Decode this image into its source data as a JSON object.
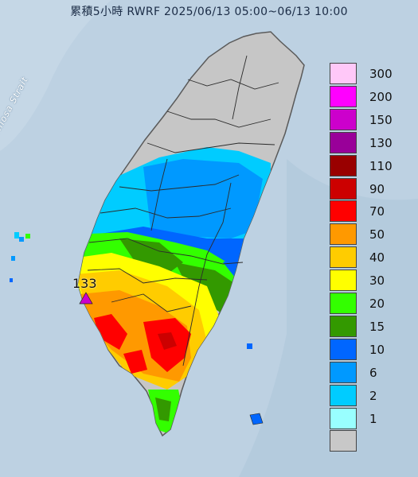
{
  "title": "累積5小時 RWRF 2025/06/13 05:00~06/13 10:00",
  "strait_label": "Formosa Strait",
  "max_value_label": "133",
  "legend": [
    {
      "label": "300",
      "color": "#ffc8f8"
    },
    {
      "label": "200",
      "color": "#ff00ff"
    },
    {
      "label": "150",
      "color": "#cc00cc"
    },
    {
      "label": "130",
      "color": "#990099"
    },
    {
      "label": "110",
      "color": "#990000"
    },
    {
      "label": "90",
      "color": "#cc0000"
    },
    {
      "label": "70",
      "color": "#ff0000"
    },
    {
      "label": "50",
      "color": "#ff9900"
    },
    {
      "label": "40",
      "color": "#ffcc00"
    },
    {
      "label": "30",
      "color": "#ffff00"
    },
    {
      "label": "20",
      "color": "#33ff00"
    },
    {
      "label": "15",
      "color": "#339900"
    },
    {
      "label": "10",
      "color": "#0066ff"
    },
    {
      "label": "6",
      "color": "#0099ff"
    },
    {
      "label": "2",
      "color": "#00ccff"
    },
    {
      "label": "1",
      "color": "#99ffff"
    },
    {
      "label": "",
      "color": "#c8c8c8"
    }
  ]
}
